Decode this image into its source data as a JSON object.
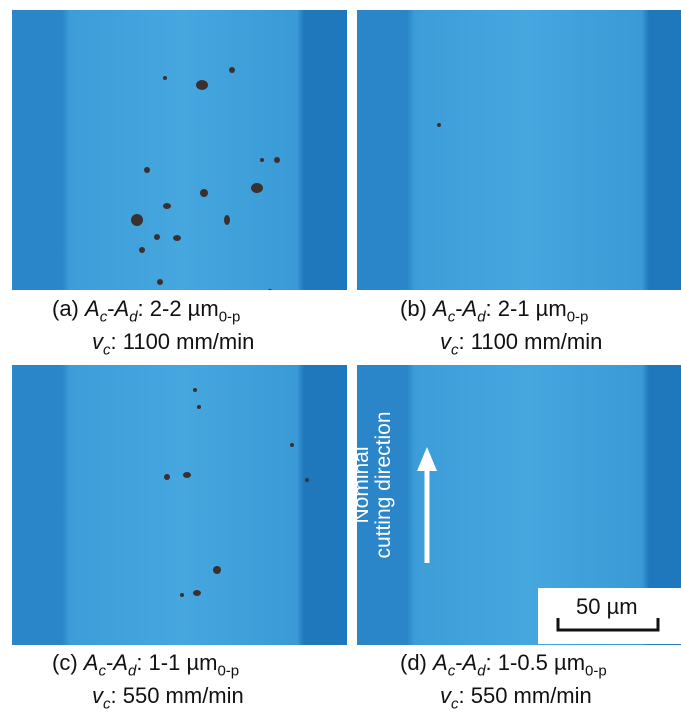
{
  "panels": [
    {
      "label": [
        "(a) ",
        "A",
        "c",
        "-",
        "A",
        "d",
        ": 2-2 µm",
        "0-p"
      ],
      "speed": [
        "v",
        "c",
        ": 1100 mm/min"
      ]
    },
    {
      "label": [
        "(b) ",
        "A",
        "c",
        "-",
        "A",
        "d",
        ": 2-1 µm",
        "0-p"
      ],
      "speed": [
        "v",
        "c",
        ": 1100 mm/min"
      ]
    },
    {
      "label": [
        "(c) ",
        "A",
        "c",
        "-",
        "A",
        "d",
        ": 1-1 µm",
        "0-p"
      ],
      "speed": [
        "v",
        "c",
        ": 550 mm/min"
      ]
    },
    {
      "label": [
        "(d) ",
        "A",
        "c",
        "-",
        "A",
        "d",
        ": 1-0.5 µm",
        "0-p"
      ],
      "speed": [
        "v",
        "c",
        ": 550 mm/min"
      ]
    }
  ],
  "annotation": {
    "direction": [
      "Nominal",
      "cutting direction"
    ],
    "scale_bar": "50 µm"
  }
}
